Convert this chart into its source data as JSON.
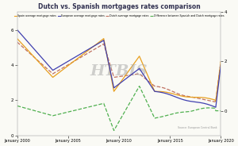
{
  "title": "Dutch vs. Spanish mortgages rates comparison",
  "title_fontsize": 5.5,
  "background_color": "#fafaf5",
  "watermark": "HTBIS",
  "source_text": "Source: European Central Bank",
  "legend_labels": [
    "Spain average mortgage rates",
    "European average mortgage rates",
    "Dutch average mortgage rates",
    "Difference between Spanish and Dutch mortgage rates"
  ],
  "legend_colors": [
    "#e8a020",
    "#4040b0",
    "#c07060",
    "#50b050"
  ],
  "xtick_labels": [
    "January 2000",
    "January 2005",
    "January 2010",
    "January 2015",
    "January 2020"
  ],
  "xtick_positions": [
    0,
    60,
    120,
    180,
    240
  ],
  "ylim_left": [
    0,
    7
  ],
  "ylim_right": [
    -1,
    4
  ],
  "yticks_left": [
    0,
    2,
    4,
    6
  ],
  "yticks_right": [
    0,
    2,
    4
  ],
  "n_points": 241
}
